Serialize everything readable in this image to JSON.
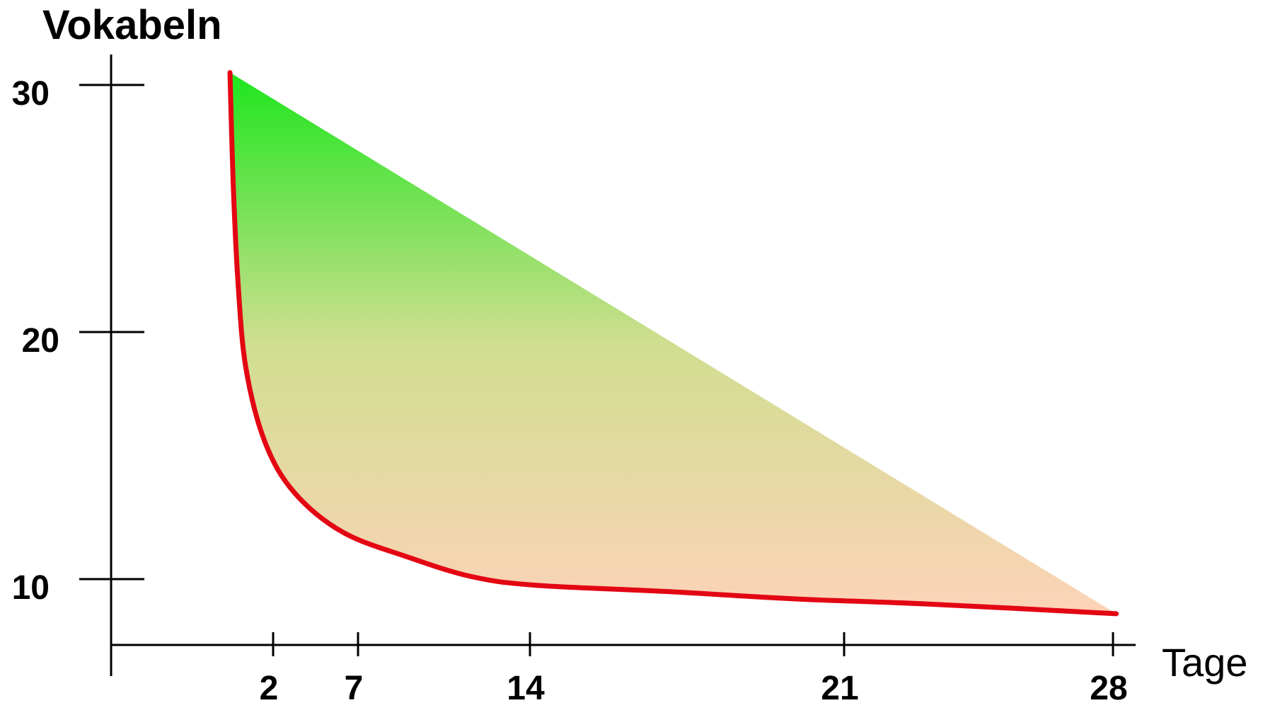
{
  "chart_data": {
    "type": "area",
    "title": "",
    "xlabel": "Tage",
    "ylabel": "Vokabeln",
    "x_ticks": [
      "2",
      "7",
      "14",
      "21",
      "28"
    ],
    "y_ticks": [
      "10",
      "20",
      "30"
    ],
    "grid": false,
    "legend": "none",
    "series": [
      {
        "role": "retained-vocabulary-curve",
        "color": "#e30613",
        "points": [
          {
            "x": 0.5,
            "y": 30.5
          },
          {
            "x": 0.6,
            "y": 26
          },
          {
            "x": 0.75,
            "y": 22
          },
          {
            "x": 1,
            "y": 18.5
          },
          {
            "x": 1.6,
            "y": 15.5
          },
          {
            "x": 2.5,
            "y": 13.5
          },
          {
            "x": 4,
            "y": 11.9
          },
          {
            "x": 6,
            "y": 10.9
          },
          {
            "x": 8,
            "y": 10.1
          },
          {
            "x": 10,
            "y": 9.75
          },
          {
            "x": 14,
            "y": 9.5
          },
          {
            "x": 18,
            "y": 9.2
          },
          {
            "x": 22,
            "y": 9.0
          },
          {
            "x": 28,
            "y": 8.6
          }
        ]
      },
      {
        "role": "upper-boundary",
        "points": [
          {
            "x": 0.5,
            "y": 30.5
          },
          {
            "x": 28,
            "y": 8.6
          }
        ]
      }
    ],
    "fill_gradient": {
      "top": "#1de61d",
      "middle": "#d0de90",
      "bottom": "#fdd3b8"
    },
    "axis_color": "#000000"
  }
}
